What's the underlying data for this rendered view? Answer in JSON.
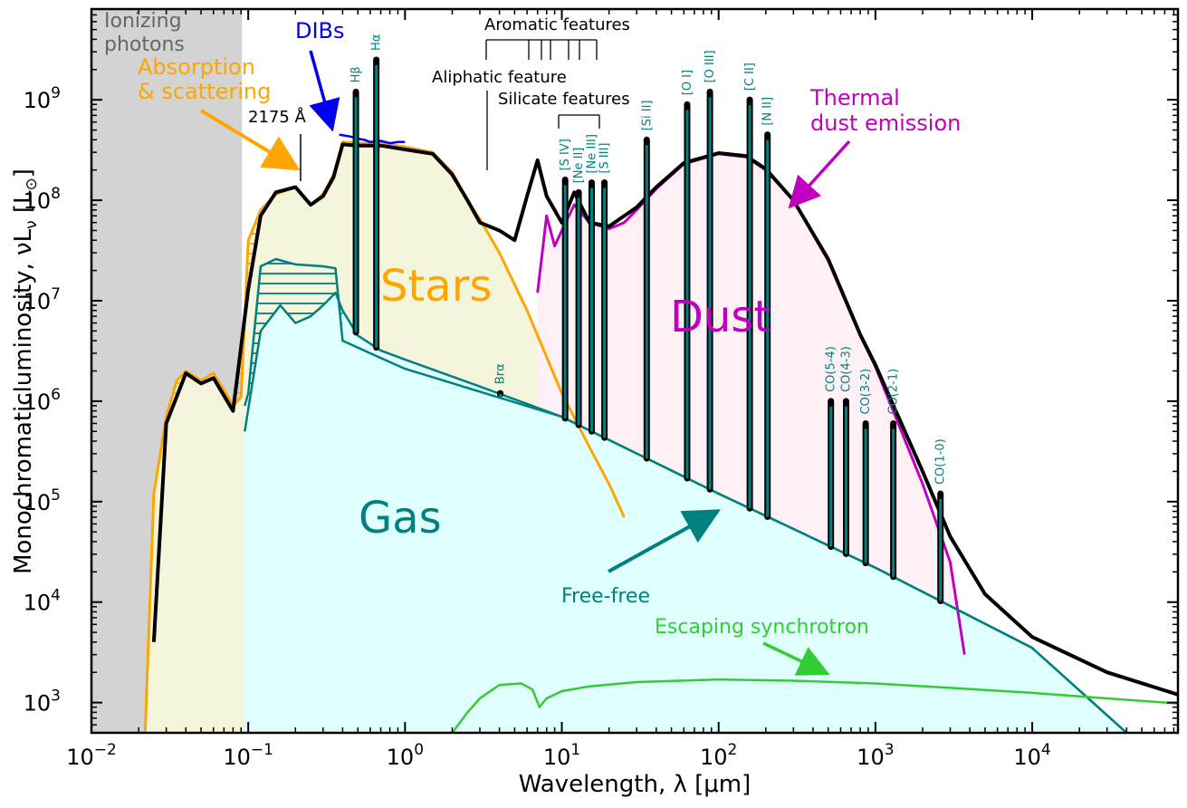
{
  "chart_data": {
    "type": "line",
    "title": "",
    "xlabel": "Wavelength, λ [μm]",
    "ylabel": "Monochromaticluminosity, νL",
    "ylabel_sub": "ν",
    "ylabel_unit": " [L",
    "ylabel_unit_sub": "⊙",
    "ylabel_unit_end": "]",
    "xscale": "log",
    "yscale": "log",
    "xlim": [
      0.01,
      85000
    ],
    "ylim": [
      500,
      8000000000
    ],
    "x_ticks": [
      {
        "value": 0.01,
        "base": "10",
        "exp": "−2"
      },
      {
        "value": 0.1,
        "base": "10",
        "exp": "−1"
      },
      {
        "value": 1,
        "base": "10",
        "exp": "0"
      },
      {
        "value": 10,
        "base": "10",
        "exp": "1"
      },
      {
        "value": 100,
        "base": "10",
        "exp": "2"
      },
      {
        "value": 1000,
        "base": "10",
        "exp": "3"
      },
      {
        "value": 10000,
        "base": "10",
        "exp": "4"
      }
    ],
    "y_ticks": [
      {
        "value": 1000,
        "base": "10",
        "exp": "3"
      },
      {
        "value": 10000,
        "base": "10",
        "exp": "4"
      },
      {
        "value": 100000,
        "base": "10",
        "exp": "5"
      },
      {
        "value": 1000000,
        "base": "10",
        "exp": "6"
      },
      {
        "value": 10000000,
        "base": "10",
        "exp": "7"
      },
      {
        "value": 100000000,
        "base": "10",
        "exp": "8"
      },
      {
        "value": 1000000000,
        "base": "10",
        "exp": "9"
      }
    ],
    "colors": {
      "total": "#000000",
      "stars": "#ffa500",
      "dust": "#c000c0",
      "gas": "#008080",
      "synchrotron": "#33cc33",
      "dibs": "#0000ee",
      "ionizing": "#d3d3d3",
      "stars_fill": "#f5f5dc",
      "dust_fill": "#fff0f5",
      "gas_fill": "#e0ffff"
    },
    "series": [
      {
        "key": "stars",
        "points": [
          [
            0.022,
            500
          ],
          [
            0.025,
            120000.0
          ],
          [
            0.03,
            700000.0
          ],
          [
            0.035,
            1600000.0
          ],
          [
            0.04,
            2000000.0
          ],
          [
            0.05,
            1600000.0
          ],
          [
            0.06,
            1900000.0
          ],
          [
            0.07,
            1300000.0
          ],
          [
            0.08,
            900000.0
          ],
          [
            0.09,
            1100000.0
          ],
          [
            0.1,
            40000000.0
          ],
          [
            0.12,
            80000000.0
          ],
          [
            0.15,
            115000000.0
          ],
          [
            0.2,
            135000000.0
          ],
          [
            0.25,
            90000000.0
          ],
          [
            0.3,
            115000000.0
          ],
          [
            0.35,
            180000000.0
          ],
          [
            0.4,
            380000000.0
          ],
          [
            0.5,
            370000000.0
          ],
          [
            0.7,
            370000000.0
          ],
          [
            1.0,
            340000000.0
          ],
          [
            1.5,
            300000000.0
          ],
          [
            2.0,
            190000000.0
          ],
          [
            2.5,
            100000000.0
          ],
          [
            3,
            65000000.0
          ],
          [
            4,
            30000000.0
          ],
          [
            6,
            8000000.0
          ],
          [
            10,
            1200000.0
          ],
          [
            15,
            350000.0
          ],
          [
            20,
            150000.0
          ],
          [
            25,
            70000.0
          ]
        ]
      },
      {
        "key": "dust",
        "points": [
          [
            7,
            12000000.0
          ],
          [
            8,
            70000000.0
          ],
          [
            9,
            35000000.0
          ],
          [
            10,
            50000000.0
          ],
          [
            12,
            90000000.0
          ],
          [
            15,
            60000000.0
          ],
          [
            20,
            52000000.0
          ],
          [
            25,
            60000000.0
          ],
          [
            30,
            80000000.0
          ],
          [
            40,
            130000000.0
          ],
          [
            60,
            230000000.0
          ],
          [
            100,
            290000000.0
          ],
          [
            150,
            270000000.0
          ],
          [
            200,
            200000000.0
          ],
          [
            300,
            100000000.0
          ],
          [
            500,
            25000000.0
          ],
          [
            800,
            4500000.0
          ],
          [
            1000,
            2200000.0
          ],
          [
            2000,
            150000.0
          ],
          [
            3000,
            25000.0
          ],
          [
            3700,
            3000.0
          ]
        ]
      },
      {
        "key": "total",
        "points": [
          [
            0.025,
            4000.0
          ],
          [
            0.03,
            600000.0
          ],
          [
            0.04,
            1900000.0
          ],
          [
            0.05,
            1500000.0
          ],
          [
            0.06,
            1700000.0
          ],
          [
            0.08,
            800000.0
          ],
          [
            0.1,
            13000000.0
          ],
          [
            0.12,
            70000000.0
          ],
          [
            0.15,
            120000000.0
          ],
          [
            0.2,
            135000000.0
          ],
          [
            0.25,
            90000000.0
          ],
          [
            0.3,
            110000000.0
          ],
          [
            0.35,
            170000000.0
          ],
          [
            0.4,
            360000000.0
          ],
          [
            0.5,
            350000000.0
          ],
          [
            0.7,
            350000000.0
          ],
          [
            1.0,
            320000000.0
          ],
          [
            1.5,
            290000000.0
          ],
          [
            2.0,
            180000000.0
          ],
          [
            2.5,
            100000000.0
          ],
          [
            3,
            60000000.0
          ],
          [
            4,
            50000000.0
          ],
          [
            5,
            40000000.0
          ],
          [
            6,
            110000000.0
          ],
          [
            7,
            250000000.0
          ],
          [
            8,
            110000000.0
          ],
          [
            10,
            60000000.0
          ],
          [
            12,
            120000000.0
          ],
          [
            15,
            60000000.0
          ],
          [
            20,
            55000000.0
          ],
          [
            30,
            85000000.0
          ],
          [
            40,
            135000000.0
          ],
          [
            60,
            235000000.0
          ],
          [
            100,
            295000000.0
          ],
          [
            150,
            275000000.0
          ],
          [
            200,
            205000000.0
          ],
          [
            300,
            100000000.0
          ],
          [
            500,
            26000000.0
          ],
          [
            800,
            4600000.0
          ],
          [
            1000,
            2300000.0
          ],
          [
            2000,
            200000.0
          ],
          [
            3000,
            45000.0
          ],
          [
            5000,
            12000.0
          ],
          [
            10000,
            4500.0
          ],
          [
            30000,
            2000.0
          ],
          [
            85000,
            1200.0
          ]
        ]
      },
      {
        "key": "gas",
        "points": [
          [
            0.095,
            900000.0
          ],
          [
            0.1,
            1200000.0
          ],
          [
            0.12,
            22000000.0
          ],
          [
            0.15,
            26000000.0
          ],
          [
            0.2,
            23000000.0
          ],
          [
            0.3,
            22000000.0
          ],
          [
            0.36,
            21000000.0
          ],
          [
            0.4,
            4000000.0
          ],
          [
            0.6,
            3000000.0
          ],
          [
            1,
            2100000.0
          ],
          [
            10,
            700000.0
          ],
          [
            100,
            120000.0
          ],
          [
            1000,
            22000.0
          ],
          [
            10000,
            3500.0
          ],
          [
            40000,
            500
          ]
        ]
      },
      {
        "key": "gas_lower",
        "points": [
          [
            0.095,
            500000.0
          ],
          [
            0.12,
            5000000.0
          ],
          [
            0.16,
            9000000.0
          ],
          [
            0.2,
            6000000.0
          ],
          [
            0.25,
            7000000.0
          ],
          [
            0.3,
            9000000.0
          ],
          [
            0.36,
            12000000.0
          ],
          [
            0.4,
            8000000.0
          ],
          [
            0.5,
            4500000.0
          ],
          [
            0.7,
            3200000.0
          ],
          [
            1,
            2600000.0
          ],
          [
            3,
            1400000.0
          ],
          [
            10,
            700000.0
          ],
          [
            100,
            120000.0
          ],
          [
            1000,
            22000.0
          ],
          [
            10000,
            3500.0
          ],
          [
            40000,
            500
          ]
        ]
      },
      {
        "key": "dibs",
        "points": [
          [
            0.38,
            450000000.0
          ],
          [
            0.45,
            430000000.0
          ],
          [
            0.5,
            410000000.0
          ],
          [
            0.55,
            400000000.0
          ],
          [
            0.6,
            380000000.0
          ],
          [
            0.7,
            390000000.0
          ],
          [
            0.8,
            370000000.0
          ],
          [
            0.9,
            380000000.0
          ],
          [
            1.0,
            380000000.0
          ]
        ]
      },
      {
        "key": "synchrotron",
        "points": [
          [
            2.0,
            500
          ],
          [
            2.5,
            800
          ],
          [
            3,
            1100.0
          ],
          [
            4,
            1500.0
          ],
          [
            5.5,
            1550.0
          ],
          [
            6.5,
            1350.0
          ],
          [
            7.2,
            900
          ],
          [
            8,
            1100.0
          ],
          [
            10,
            1300.0
          ],
          [
            15,
            1450.0
          ],
          [
            30,
            1600.0
          ],
          [
            100,
            1700.0
          ],
          [
            300,
            1650.0
          ],
          [
            1000,
            1550.0
          ],
          [
            3000,
            1400.0
          ],
          [
            10000,
            1250.0
          ],
          [
            30000,
            1100.0
          ],
          [
            85000,
            980
          ]
        ]
      }
    ],
    "gas_lines": [
      {
        "x": 0.486,
        "top": 1200000000.0,
        "label": "Hβ"
      },
      {
        "x": 0.656,
        "top": 2500000000.0,
        "label": "Hα"
      },
      {
        "x": 4.05,
        "top": 1200000.0,
        "label": "Brα"
      },
      {
        "x": 10.5,
        "top": 160000000.0,
        "label": "[S IV]"
      },
      {
        "x": 12.8,
        "top": 120000000.0,
        "label": "[Ne II]"
      },
      {
        "x": 15.5,
        "top": 150000000.0,
        "label": "[Ne III]"
      },
      {
        "x": 18.7,
        "top": 150000000.0,
        "label": "[S III]"
      },
      {
        "x": 34.8,
        "top": 400000000.0,
        "label": "[Si II]"
      },
      {
        "x": 63,
        "top": 900000000.0,
        "label": "[O I]"
      },
      {
        "x": 88,
        "top": 1200000000.0,
        "label": "[O III]"
      },
      {
        "x": 158,
        "top": 1000000000.0,
        "label": "[C II]"
      },
      {
        "x": 205,
        "top": 450000000.0,
        "label": "[N II]"
      },
      {
        "x": 520,
        "top": 1000000.0,
        "label": "CO(5-4)"
      },
      {
        "x": 650,
        "top": 1000000.0,
        "label": "CO(4-3)"
      },
      {
        "x": 867,
        "top": 600000.0,
        "label": "CO(3-2)"
      },
      {
        "x": 1300,
        "top": 600000.0,
        "label": "CO(2-1)"
      },
      {
        "x": 2600,
        "top": 120000.0,
        "label": "CO(1-0)"
      }
    ],
    "annotations": {
      "ionizing": "Ionizing photons",
      "absorption": "Absorption & scattering",
      "dibs": "DIBs",
      "bump": "2175 Å",
      "aromatic": "Aromatic features",
      "aliphatic": "Aliphatic feature",
      "silicate": "Silicate features",
      "thermal": "Thermal dust emission",
      "stars": "Stars",
      "dust": "Dust",
      "gas": "Gas",
      "freefree": "Free-free",
      "synchrotron": "Escaping synchrotron"
    }
  }
}
